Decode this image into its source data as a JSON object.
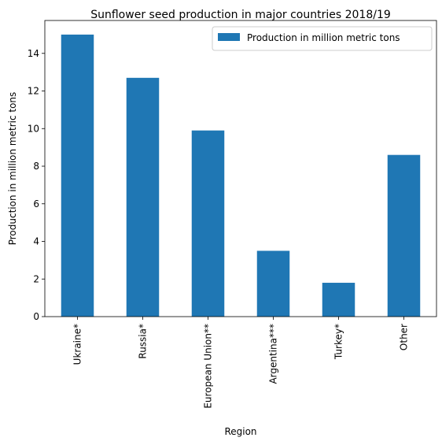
{
  "chart_data": {
    "type": "bar",
    "title": "Sunflower seed production in major countries 2018/19",
    "xlabel": "Region",
    "ylabel": "Production in million metric tons",
    "categories": [
      "Ukraine*",
      "Russia*",
      "European Union**",
      "Argentina***",
      "Turkey*",
      "Other"
    ],
    "series": [
      {
        "name": "Production in million metric tons",
        "values": [
          15.0,
          12.7,
          9.9,
          3.5,
          1.8,
          8.6
        ],
        "color": "#1f77b4"
      }
    ],
    "ylim": [
      0,
      15.75
    ],
    "yticks": [
      0,
      2,
      4,
      6,
      8,
      10,
      12,
      14
    ],
    "grid": false,
    "legend": "top-right"
  }
}
